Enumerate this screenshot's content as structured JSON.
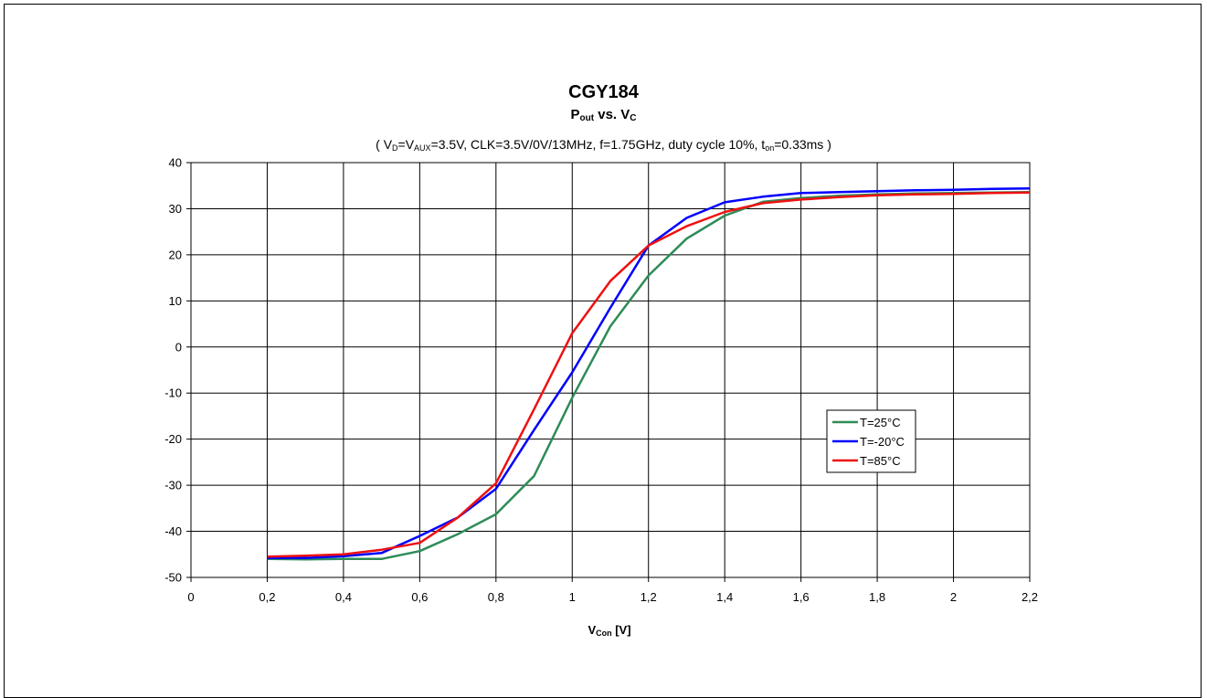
{
  "chart_data": {
    "type": "line",
    "title": "CGY184",
    "subtitle": {
      "main1": "P",
      "sub1": "out",
      "main2": " vs. V",
      "sub2": "C"
    },
    "conditions": {
      "p1": "( V",
      "s1": "D",
      "p2": "=V",
      "s2": "AUX",
      "p3": "=3.5V, CLK=3.5V/0V/13MHz, f=1.75GHz, duty cycle 10%, t",
      "s3": "on",
      "p4": "=0.33ms )"
    },
    "xlabel": {
      "main": "V",
      "sub": "Con",
      "rest": " [V]"
    },
    "ylabel": "",
    "xlim": [
      0,
      2.2
    ],
    "ylim": [
      -50,
      40
    ],
    "x_ticks": [
      "0",
      "0,2",
      "0,4",
      "0,6",
      "0,8",
      "1",
      "1,2",
      "1,4",
      "1,6",
      "1,8",
      "2",
      "2,2"
    ],
    "y_ticks": [
      "40",
      "30",
      "20",
      "10",
      "0",
      "-10",
      "-20",
      "-30",
      "-40",
      "-50"
    ],
    "grid": true,
    "legend_position": "right-middle",
    "series": [
      {
        "name": "T=25°C",
        "color": "#2e8b57",
        "x": [
          0.2,
          0.3,
          0.4,
          0.5,
          0.6,
          0.7,
          0.8,
          0.9,
          1.0,
          1.1,
          1.2,
          1.3,
          1.4,
          1.5,
          1.6,
          1.7,
          1.8,
          1.9,
          2.0,
          2.1,
          2.2
        ],
        "y": [
          -46.0,
          -46.1,
          -46.0,
          -46.0,
          -44.3,
          -40.6,
          -36.3,
          -28.0,
          -11.0,
          4.5,
          15.5,
          23.5,
          28.5,
          31.5,
          32.3,
          32.8,
          33.1,
          33.3,
          33.4,
          33.5,
          33.6
        ]
      },
      {
        "name": "T=-20°C",
        "color": "#0000ff",
        "x": [
          0.2,
          0.3,
          0.4,
          0.5,
          0.6,
          0.7,
          0.8,
          0.9,
          1.0,
          1.1,
          1.2,
          1.3,
          1.4,
          1.5,
          1.6,
          1.7,
          1.8,
          1.9,
          2.0,
          2.1,
          2.2
        ],
        "y": [
          -45.8,
          -45.8,
          -45.4,
          -44.7,
          -41.0,
          -37.0,
          -30.8,
          -18.0,
          -5.5,
          8.5,
          22.0,
          28.0,
          31.4,
          32.6,
          33.4,
          33.6,
          33.8,
          34.0,
          34.1,
          34.3,
          34.4
        ]
      },
      {
        "name": "T=85°C",
        "color": "#ee1111",
        "x": [
          0.2,
          0.3,
          0.4,
          0.5,
          0.6,
          0.7,
          0.8,
          0.9,
          1.0,
          1.1,
          1.2,
          1.3,
          1.4,
          1.5,
          1.6,
          1.7,
          1.8,
          1.9,
          2.0,
          2.1,
          2.2
        ],
        "y": [
          -45.5,
          -45.3,
          -45.0,
          -44.0,
          -42.5,
          -37.0,
          -29.6,
          -13.5,
          3.0,
          14.3,
          22.0,
          26.2,
          29.3,
          31.2,
          32.0,
          32.5,
          32.9,
          33.1,
          33.2,
          33.4,
          33.5
        ]
      }
    ]
  }
}
